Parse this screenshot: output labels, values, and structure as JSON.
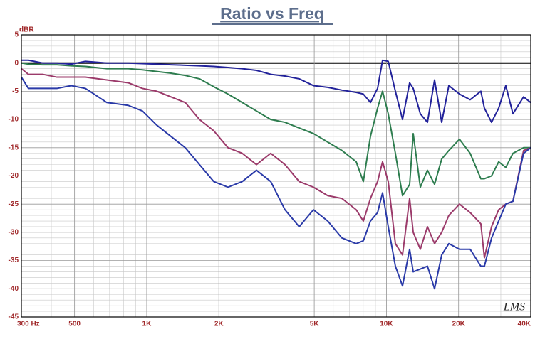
{
  "chart_data": {
    "type": "line",
    "title": "Ratio vs Freq",
    "y_label": "dBR",
    "annotation": "LMS",
    "xscale": "log",
    "grid": true,
    "xlim": [
      300,
      40000
    ],
    "ylim": [
      -45,
      5
    ],
    "xticks": [
      {
        "value": 300,
        "label": "300 Hz"
      },
      500,
      {
        "value": 1000,
        "label": "1K"
      },
      {
        "value": 2000,
        "label": "2K"
      },
      {
        "value": 5000,
        "label": "5K"
      },
      {
        "value": 10000,
        "label": "10K"
      },
      {
        "value": 20000,
        "label": "20K"
      },
      {
        "value": 40000,
        "label": "40K"
      }
    ],
    "yticks": [
      5,
      0,
      -5,
      -10,
      -15,
      -20,
      -25,
      -30,
      -35,
      -40,
      -45
    ],
    "x": [
      300,
      321,
      368,
      422,
      484,
      555,
      682,
      837,
      960,
      1101,
      1262,
      1448,
      1660,
      1904,
      2183,
      2503,
      2870,
      3291,
      3774,
      4327,
      4961,
      5689,
      6523,
      7480,
      8010,
      8577,
      9185,
      9635,
      10176,
      10898,
      11671,
      12498,
      12934,
      13849,
      14830,
      15880,
      17005,
      18210,
      20171,
      22349,
      24768,
      25629,
      27450,
      29391,
      31474,
      33703,
      37339,
      40000
    ],
    "series": [
      {
        "color": "#22229a",
        "values": [
          0.5,
          0.5,
          0,
          0,
          -0.2,
          0.3,
          0,
          0,
          -0.1,
          -0.2,
          -0.3,
          -0.4,
          -0.5,
          -0.6,
          -0.8,
          -1,
          -1.3,
          -2,
          -2.3,
          -2.8,
          -4,
          -4.3,
          -4.8,
          -5.2,
          -5.5,
          -7,
          -4.5,
          0.5,
          0.3,
          -5,
          -10,
          -3.5,
          -4.5,
          -9,
          -10.5,
          -3,
          -10.5,
          -4,
          -5.5,
          -6.5,
          -5,
          -8,
          -10.5,
          -8,
          -4,
          -9,
          -6,
          -7
        ]
      },
      {
        "color": "#2e7d4f",
        "values": [
          0,
          -0.2,
          -0.3,
          -0.3,
          -0.5,
          -0.6,
          -1,
          -1,
          -1.2,
          -1.5,
          -1.8,
          -2.2,
          -2.8,
          -4.2,
          -5.5,
          -7,
          -8.5,
          -10,
          -10.5,
          -11.5,
          -12.5,
          -14,
          -15.5,
          -17.5,
          -21,
          -13,
          -8,
          -5,
          -9,
          -16,
          -23.5,
          -21.5,
          -12.5,
          -22,
          -19,
          -21.5,
          -17,
          -15.5,
          -13.5,
          -16,
          -20.5,
          -20.5,
          -20,
          -17.5,
          -18.5,
          -16,
          -15,
          -15
        ]
      },
      {
        "color": "#9b3a6a",
        "values": [
          -1,
          -2,
          -2,
          -2.5,
          -2.5,
          -2.5,
          -3,
          -3.5,
          -4.5,
          -5,
          -6,
          -7,
          -10,
          -12,
          -15,
          -16,
          -18,
          -16,
          -18,
          -21,
          -22,
          -23.5,
          -24,
          -26,
          -28,
          -24,
          -21,
          -17.5,
          -21,
          -32,
          -34,
          -24,
          -30,
          -33,
          -29,
          -32,
          -30,
          -27,
          -25,
          -26.5,
          -28.5,
          -34.5,
          -29,
          -26,
          -25,
          -24.5,
          -15.5,
          -15
        ]
      },
      {
        "color": "#2a3aa8",
        "values": [
          -2.5,
          -4.5,
          -4.5,
          -4.5,
          -4,
          -4.5,
          -7,
          -7.5,
          -8.5,
          -11,
          -13,
          -15,
          -18,
          -21,
          -22,
          -21,
          -19,
          -21,
          -26,
          -29,
          -26,
          -28,
          -31,
          -32,
          -31.5,
          -28,
          -26.5,
          -23,
          -29,
          -36,
          -39.5,
          -33,
          -37,
          -36.5,
          -36,
          -40,
          -34,
          -32,
          -33,
          -33,
          -36,
          -36,
          -31,
          -28,
          -25,
          -24.5,
          -16,
          -15
        ]
      }
    ]
  }
}
